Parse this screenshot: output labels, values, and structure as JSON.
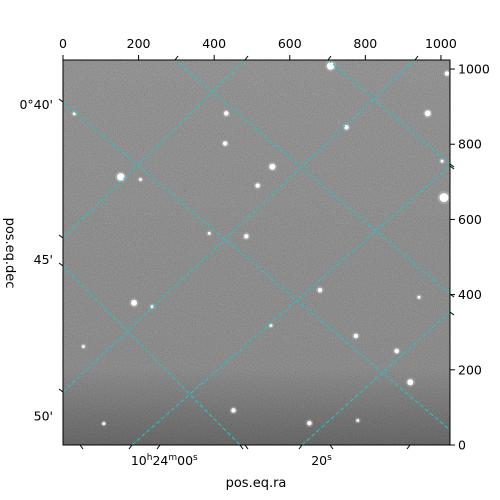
{
  "chart_data": {
    "type": "image",
    "pixel_axes": {
      "x_ticks": [
        0,
        200,
        400,
        600,
        800,
        1000
      ],
      "x_tick_labels": [
        "0",
        "200",
        "400",
        "600",
        "800",
        "1000"
      ],
      "y_ticks": [
        0,
        200,
        400,
        600,
        800,
        1000
      ],
      "y_tick_labels": [
        "0",
        "200",
        "400",
        "600",
        "800",
        "1000"
      ],
      "xlim": [
        0,
        1024
      ],
      "ylim": [
        0,
        1024
      ]
    },
    "world_axes": {
      "xlabel": "pos.eq.ra",
      "ylabel": "pos.eq.dec",
      "ra_tick_labels": [
        {
          "label": "10h24m00s",
          "x": 268
        },
        {
          "label": "20s",
          "x": 684
        }
      ],
      "dec_tick_labels": [
        {
          "label": "0°40'",
          "y": 905
        },
        {
          "label": "45'",
          "y": 493
        },
        {
          "label": "50'",
          "y": 77
        }
      ]
    },
    "grid": {
      "on": true,
      "color": "#1fc8c8",
      "style": "dashed"
    },
    "colormap": "gray",
    "stars": [
      {
        "x": 708,
        "y": 1008,
        "r": 5
      },
      {
        "x": 1016,
        "y": 988,
        "r": 3
      },
      {
        "x": 965,
        "y": 882,
        "r": 4
      },
      {
        "x": 432,
        "y": 882,
        "r": 3
      },
      {
        "x": 750,
        "y": 845,
        "r": 3
      },
      {
        "x": 429,
        "y": 802,
        "r": 3
      },
      {
        "x": 554,
        "y": 740,
        "r": 4
      },
      {
        "x": 153,
        "y": 713,
        "r": 5
      },
      {
        "x": 205,
        "y": 706,
        "r": 2
      },
      {
        "x": 515,
        "y": 690,
        "r": 3
      },
      {
        "x": 1008,
        "y": 658,
        "r": 6
      },
      {
        "x": 387,
        "y": 563,
        "r": 2
      },
      {
        "x": 485,
        "y": 555,
        "r": 3
      },
      {
        "x": 680,
        "y": 412,
        "r": 3
      },
      {
        "x": 942,
        "y": 393,
        "r": 2
      },
      {
        "x": 188,
        "y": 378,
        "r": 4
      },
      {
        "x": 236,
        "y": 368,
        "r": 2
      },
      {
        "x": 550,
        "y": 318,
        "r": 2
      },
      {
        "x": 775,
        "y": 290,
        "r": 3
      },
      {
        "x": 883,
        "y": 250,
        "r": 3
      },
      {
        "x": 54,
        "y": 262,
        "r": 2
      },
      {
        "x": 919,
        "y": 167,
        "r": 4
      },
      {
        "x": 451,
        "y": 92,
        "r": 3
      },
      {
        "x": 652,
        "y": 58,
        "r": 3
      },
      {
        "x": 780,
        "y": 65,
        "r": 2
      },
      {
        "x": 108,
        "y": 57,
        "r": 2
      },
      {
        "x": 30,
        "y": 881,
        "r": 2
      },
      {
        "x": 1003,
        "y": 755,
        "r": 2
      }
    ]
  }
}
